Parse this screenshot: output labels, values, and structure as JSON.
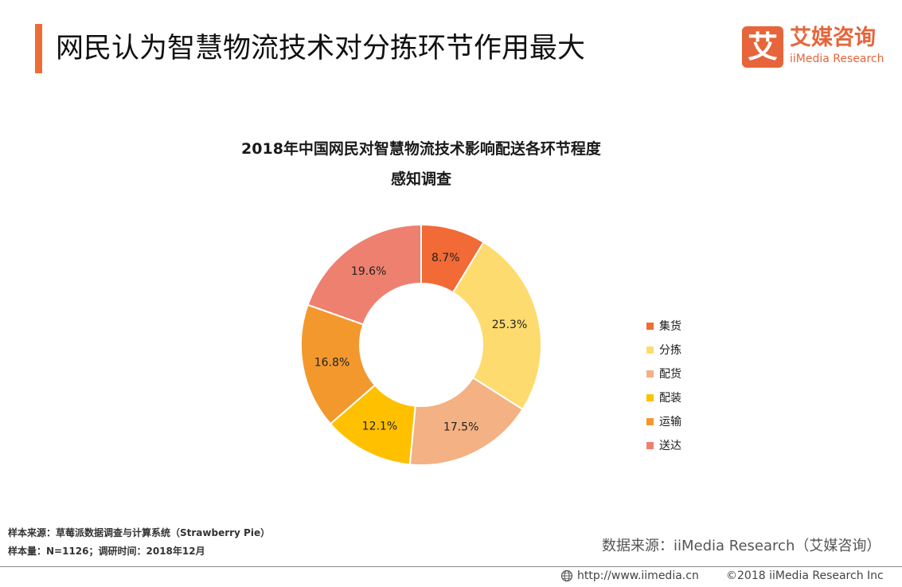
{
  "header": {
    "title": "网民认为智慧物流技术对分拣环节作用最大",
    "logo": {
      "glyph": "艾",
      "name_cn": "艾媒咨询",
      "name_en": "iiMedia Research",
      "color": "#e6653b"
    },
    "accent_color": "#ee6c35"
  },
  "chart_data": {
    "type": "pie",
    "style": "donut",
    "title_line1": "2018年中国网民对智慧物流技术影响配送各环节程度",
    "title_line2": "感知调查",
    "unit": "%",
    "legend_position": "right",
    "slices": [
      {
        "label": "集货",
        "value": 8.7,
        "value_label": "8.7%",
        "color": "#f26a35"
      },
      {
        "label": "分拣",
        "value": 25.3,
        "value_label": "25.3%",
        "color": "#fedb6e"
      },
      {
        "label": "配货",
        "value": 17.5,
        "value_label": "17.5%",
        "color": "#f4b183"
      },
      {
        "label": "配装",
        "value": 12.1,
        "value_label": "12.1%",
        "color": "#ffc000"
      },
      {
        "label": "运输",
        "value": 16.8,
        "value_label": "16.8%",
        "color": "#f3982d"
      },
      {
        "label": "送达",
        "value": 19.6,
        "value_label": "19.6%",
        "color": "#ee8070"
      }
    ]
  },
  "notes": {
    "line1": "样本来源：草莓派数据调查与计算系统（Strawberry  Pie）",
    "line2": "样本量：N=1126；调研时间：2018年12月"
  },
  "source": "数据来源：iiMedia Research（艾媒咨询）",
  "footer": {
    "url": "http://www.iimedia.cn",
    "copyright": "©2018  iiMedia Research  Inc"
  }
}
